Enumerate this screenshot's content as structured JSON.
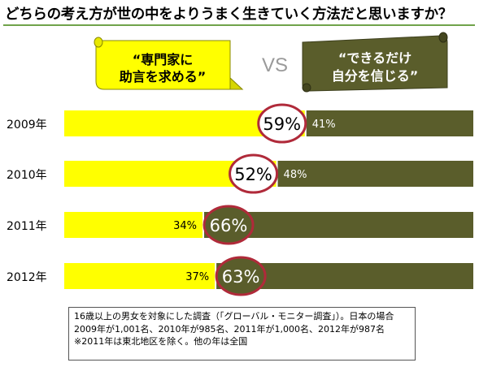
{
  "title": "どちらの考え方が世の中をよりうまく生きていく方法だと思いますか？",
  "vs_label": "VS",
  "colors": {
    "left": "#ffff00",
    "right": "#5a5d2b",
    "highlight": "#b02a3a",
    "rule": "#70a34a"
  },
  "note": {
    "lines": [
      "16歳以上の男女を対象にした調査（「グローバル・モニター調査」）。日本の場合",
      "2009年が1,001名、2010年が985名、2011年が1,000名、2012年が987名",
      "※2011年は東北地区を除く。他の年は全国"
    ]
  },
  "chart_data": {
    "type": "bar",
    "stacked": true,
    "orientation": "horizontal",
    "categories": [
      "2009年",
      "2010年",
      "2011年",
      "2012年"
    ],
    "series": [
      {
        "name_lines": [
          "“専門家に",
          "助言を求める”"
        ],
        "values": [
          59,
          52,
          34,
          37
        ]
      },
      {
        "name_lines": [
          "“できるだけ",
          "自分を信じる”"
        ],
        "values": [
          41,
          48,
          66,
          63
        ]
      }
    ],
    "value_labels": {
      "left": [
        "59%",
        "52%",
        "34%",
        "37%"
      ],
      "right": [
        "41%",
        "48%",
        "66%",
        "63%"
      ]
    },
    "highlighted": [
      "left",
      "left",
      "right",
      "right"
    ],
    "xlim": [
      0,
      100
    ]
  }
}
